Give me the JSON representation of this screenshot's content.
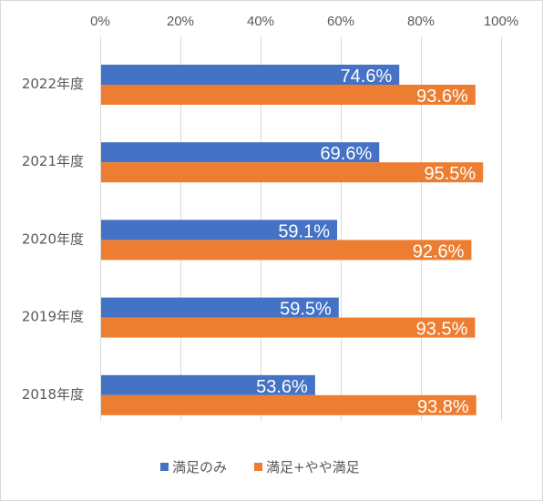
{
  "chart_data": {
    "type": "bar",
    "orientation": "horizontal",
    "categories": [
      "2022年度",
      "2021年度",
      "2020年度",
      "2019年度",
      "2018年度"
    ],
    "series": [
      {
        "name": "満足のみ",
        "values": [
          74.6,
          69.6,
          59.1,
          59.5,
          53.6
        ],
        "color": "#4472c4"
      },
      {
        "name": "満足+やや満足",
        "values": [
          93.6,
          95.5,
          92.6,
          93.5,
          93.8
        ],
        "color": "#ed7d31"
      }
    ],
    "data_labels": [
      [
        "74.6%",
        "69.6%",
        "59.1%",
        "59.5%",
        "53.6%"
      ],
      [
        "93.6%",
        "95.5%",
        "92.6%",
        "93.5%",
        "93.8%"
      ]
    ],
    "x_ticks": [
      "0%",
      "20%",
      "40%",
      "60%",
      "80%",
      "100%"
    ],
    "xlim": [
      0,
      100
    ],
    "x_axis_position": "top",
    "grid": true,
    "legend": "bottom"
  }
}
